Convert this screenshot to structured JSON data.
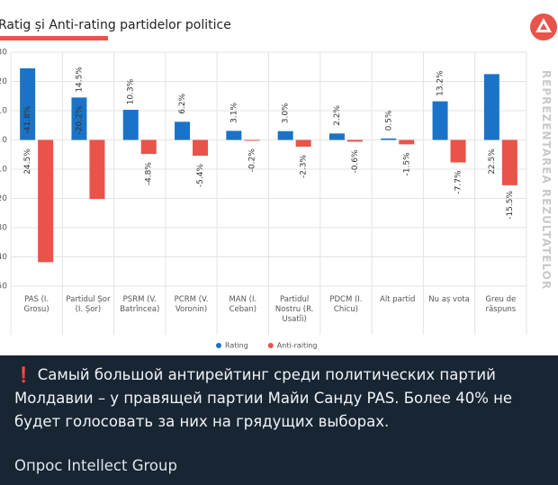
{
  "chart_data": {
    "type": "bar",
    "title": "Ratig și Anti-rating partidelor politice",
    "categories": [
      "PAS (I. Grosu)",
      "Partidul Șor (I. Șor)",
      "PSRM (V. Batrîncea)",
      "PCRM (V. Voronin)",
      "MAN (I. Ceban)",
      "Partidul Nostru (R. Usatîi)",
      "PDCM (I. Chicu)",
      "Alt partid",
      "Nu aș vota",
      "Greu de răspuns"
    ],
    "series": [
      {
        "name": "Rating",
        "color": "#1a73c8",
        "values": [
          24.5,
          14.5,
          10.3,
          6.2,
          3.1,
          3.0,
          2.2,
          0.5,
          13.2,
          22.5
        ],
        "value_labels": [
          "24.5%",
          "14.5%",
          "10.3%",
          "6.2%",
          "3.1%",
          "3.0%",
          "2.2%",
          "0.5%",
          "13.2%",
          "22.5%"
        ]
      },
      {
        "name": "Anti-raiting",
        "color": "#e8534a",
        "values": [
          -41.8,
          -20.2,
          -4.8,
          -5.4,
          -0.2,
          -2.3,
          -0.6,
          -1.5,
          -7.7,
          -15.5
        ],
        "value_labels": [
          "-41.8%",
          "-20.2%",
          "-4.8%",
          "-5.4%",
          "-0.2%",
          "-2.3%",
          "-0.6%",
          "-1.5%",
          "-7.7%",
          "-15.5%"
        ]
      }
    ],
    "ylim": [
      -50,
      30
    ],
    "yticks": [
      -50,
      -40,
      -30,
      -20,
      -10,
      0,
      10,
      20,
      30
    ],
    "grid": true,
    "legend": "bottom"
  },
  "watermark": "REPREZENTAREA REZULTATELOR",
  "post": {
    "text": "❗ Самый большой антирейтинг среди политических партий Молдавии – у правящей партии Майи Санду PAS. Более 40% не будет голосовать за них на грядущих выборах.",
    "source": "Опрос Intellect Group"
  }
}
